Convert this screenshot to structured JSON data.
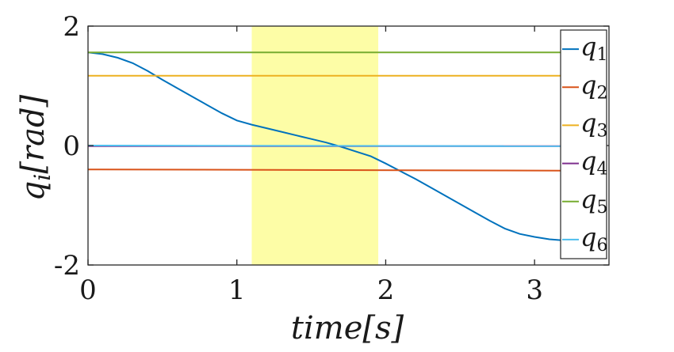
{
  "chart_data": {
    "type": "line",
    "xlabel": "time[s]",
    "ylabel": "q_i[rad]",
    "xlim": [
      0,
      3.5
    ],
    "ylim": [
      -2,
      2
    ],
    "x_ticks": [
      0,
      1,
      2,
      3
    ],
    "y_ticks": [
      -2,
      0,
      2
    ],
    "x_tick_labels": [
      "0",
      "1",
      "2",
      "3"
    ],
    "y_tick_labels": [
      "-2",
      "0",
      "2"
    ],
    "grid": false,
    "legend_position": "right",
    "highlight_region": {
      "x": [
        1.1,
        1.95
      ],
      "color": "#fdfda6"
    },
    "series": [
      {
        "name": "q1",
        "label_main": "q",
        "label_sub": "1",
        "color": "#0072bd",
        "points": [
          [
            0,
            1.56
          ],
          [
            0.1,
            1.53
          ],
          [
            0.2,
            1.47
          ],
          [
            0.3,
            1.38
          ],
          [
            0.4,
            1.25
          ],
          [
            0.5,
            1.1
          ],
          [
            0.6,
            0.96
          ],
          [
            0.7,
            0.82
          ],
          [
            0.8,
            0.68
          ],
          [
            0.9,
            0.54
          ],
          [
            1.0,
            0.42
          ],
          [
            1.1,
            0.35
          ],
          [
            1.2,
            0.29
          ],
          [
            1.3,
            0.23
          ],
          [
            1.4,
            0.17
          ],
          [
            1.5,
            0.11
          ],
          [
            1.6,
            0.05
          ],
          [
            1.7,
            -0.02
          ],
          [
            1.8,
            -0.1
          ],
          [
            1.9,
            -0.18
          ],
          [
            2.0,
            -0.3
          ],
          [
            2.1,
            -0.43
          ],
          [
            2.2,
            -0.56
          ],
          [
            2.3,
            -0.7
          ],
          [
            2.4,
            -0.84
          ],
          [
            2.5,
            -0.98
          ],
          [
            2.6,
            -1.12
          ],
          [
            2.7,
            -1.26
          ],
          [
            2.8,
            -1.39
          ],
          [
            2.9,
            -1.48
          ],
          [
            3.0,
            -1.53
          ],
          [
            3.1,
            -1.57
          ],
          [
            3.2,
            -1.59
          ]
        ]
      },
      {
        "name": "q2",
        "label_main": "q",
        "label_sub": "2",
        "color": "#d95319",
        "points": [
          [
            0,
            -0.4
          ],
          [
            3.2,
            -0.42
          ]
        ]
      },
      {
        "name": "q3",
        "label_main": "q",
        "label_sub": "3",
        "color": "#edb120",
        "points": [
          [
            0,
            1.17
          ],
          [
            3.2,
            1.17
          ]
        ]
      },
      {
        "name": "q4",
        "label_main": "q",
        "label_sub": "4",
        "color": "#7e2f8e",
        "points": [
          [
            0,
            -0.01
          ],
          [
            3.2,
            -0.01
          ]
        ]
      },
      {
        "name": "q5",
        "label_main": "q",
        "label_sub": "5",
        "color": "#77ac30",
        "points": [
          [
            0,
            1.56
          ],
          [
            3.2,
            1.56
          ]
        ]
      },
      {
        "name": "q6",
        "label_main": "q",
        "label_sub": "6",
        "color": "#4dbeee",
        "points": [
          [
            0,
            0
          ],
          [
            3.2,
            -0.01
          ]
        ]
      }
    ]
  }
}
